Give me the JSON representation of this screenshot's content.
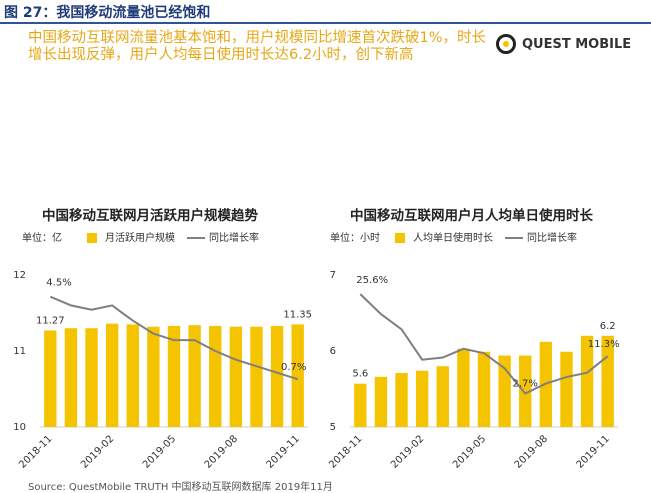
{
  "figure_title": "图 27：我国移动流量池已经饱和",
  "headline": "中国移动互联网流量池基本饱和，用户规模同比增速首次跌破1%，时长增长出现反弹，用户人均每日使用时长达6.2小时，创下新高",
  "logo": "QUEST MOBILE",
  "source": "Source:  QuestMobile TRUTH 中国移动互联网数据库 2019年11月",
  "chart_data": [
    {
      "type": "bar",
      "title": "中国移动互联网月活跃用户规模趋势",
      "unit": "单位：亿",
      "categories": [
        "2018-11",
        null,
        null,
        "2019-02",
        null,
        null,
        "2019-05",
        null,
        null,
        "2019-08",
        null,
        null,
        "2019-11"
      ],
      "series": [
        {
          "name": "月活跃用户规模",
          "type": "bar",
          "color": "#f5c400",
          "values": [
            11.27,
            11.3,
            11.3,
            11.36,
            11.35,
            11.32,
            11.33,
            11.34,
            11.33,
            11.32,
            11.32,
            11.33,
            11.35
          ],
          "value_labels": [
            "11.27",
            null,
            null,
            null,
            null,
            null,
            null,
            null,
            null,
            null,
            null,
            null,
            "11.35"
          ]
        },
        {
          "name": "同比增长率",
          "type": "line",
          "axis": "y2",
          "color": "#7f7f7f",
          "values": [
            4.5,
            4.1,
            3.9,
            4.1,
            3.4,
            2.8,
            2.5,
            2.5,
            2.0,
            1.6,
            1.3,
            1.0,
            0.7
          ],
          "value_labels": [
            "4.5%",
            null,
            null,
            null,
            null,
            null,
            null,
            null,
            null,
            null,
            null,
            null,
            "0.7%"
          ]
        }
      ],
      "ylim": [
        10,
        12
      ],
      "yticks": [
        10,
        11,
        12
      ],
      "y2lim": [
        -1.5,
        5.5
      ]
    },
    {
      "type": "bar",
      "title": "中国移动互联网用户月人均单日使用时长",
      "unit": "单位：小时",
      "categories": [
        "2018-11",
        null,
        null,
        "2019-02",
        null,
        null,
        "2019-05",
        null,
        null,
        "2019-08",
        null,
        null,
        "2019-11"
      ],
      "series": [
        {
          "name": "人均单日使用时长",
          "type": "bar",
          "color": "#f5c400",
          "values": [
            5.57,
            5.66,
            5.71,
            5.74,
            5.8,
            6.03,
            5.99,
            5.94,
            5.94,
            6.12,
            5.99,
            6.2,
            6.2
          ],
          "value_labels": [
            "5.6",
            null,
            null,
            null,
            null,
            null,
            null,
            null,
            null,
            null,
            null,
            null,
            "6.2"
          ]
        },
        {
          "name": "同比增长率",
          "type": "line",
          "axis": "y2",
          "color": "#7f7f7f",
          "values": [
            25.6,
            21,
            17.5,
            10.5,
            11,
            13,
            12,
            8.5,
            2.7,
            5,
            6.5,
            7.5,
            11.3
          ],
          "value_labels": [
            "25.6%",
            null,
            null,
            null,
            null,
            null,
            null,
            null,
            "2.7%",
            null,
            null,
            null,
            "11.3%"
          ]
        }
      ],
      "ylim": [
        5,
        7
      ],
      "yticks": [
        5,
        6,
        7
      ],
      "y2lim": [
        -5,
        30
      ]
    }
  ]
}
